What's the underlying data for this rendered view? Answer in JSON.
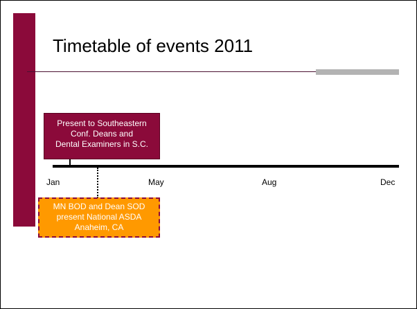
{
  "title": "Timetable of events 2011",
  "timeline": {
    "labels": [
      "Jan",
      "May",
      "Aug",
      "Dec"
    ]
  },
  "events": [
    {
      "lines": [
        "Present to Southeastern",
        "Conf. Deans and",
        "Dental Examiners in S.C."
      ]
    },
    {
      "lines": [
        "MN BOD and Dean SOD",
        "present National ASDA",
        "Anaheim, CA"
      ]
    }
  ]
}
